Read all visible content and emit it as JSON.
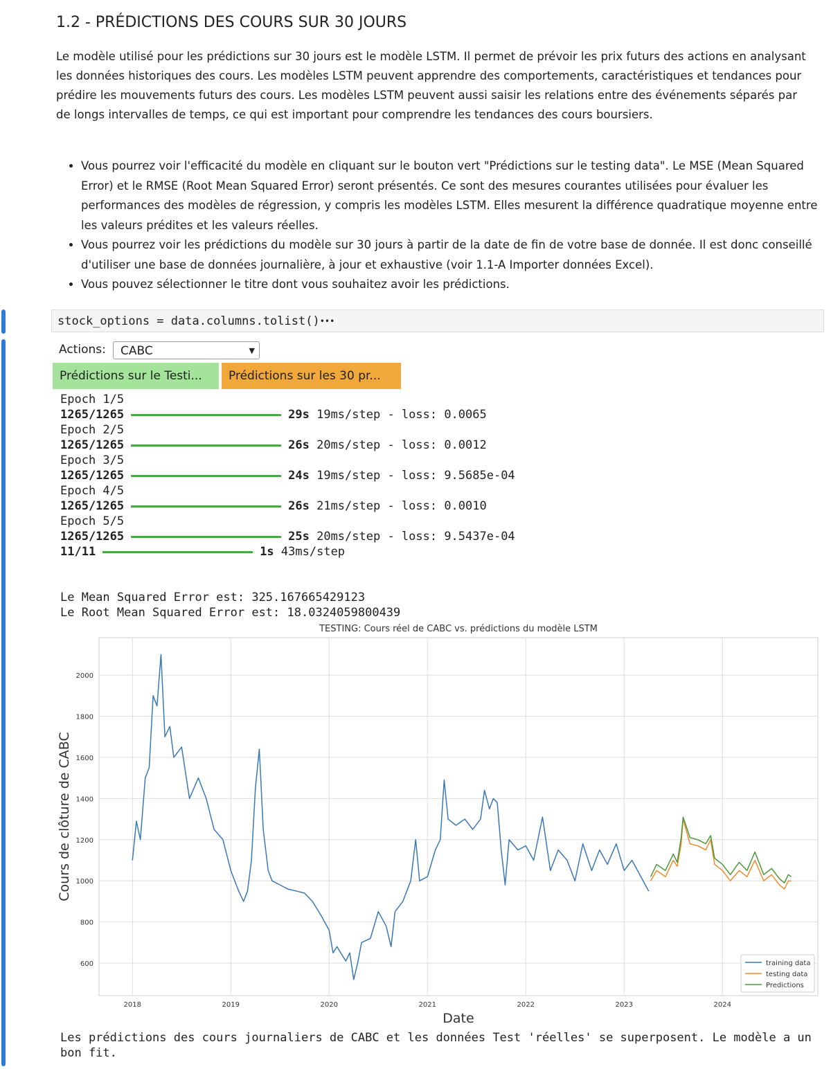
{
  "header": {
    "title": "1.2 - PRÉDICTIONS DES COURS SUR 30 JOURS"
  },
  "intro": {
    "paragraph": "Le modèle utilisé pour les prédictions sur 30 jours est le modèle LSTM. Il permet de prévoir les prix futurs des actions en analysant les données historiques des cours. Les modèles LSTM peuvent apprendre des comportements, caractéristiques et tendances pour prédire les mouvements futurs des cours. Les modèles LSTM peuvent aussi saisir les relations entre des événements séparés par de longs intervalles de temps, ce qui est important pour comprendre les tendances des cours boursiers.",
    "bullets": [
      "Vous pourrez voir l'efficacité du modèle en cliquant sur le bouton vert \"Prédictions sur le testing data\". Le MSE (Mean Squared Error) et le RMSE (Root Mean Squared Error) seront présentés. Ce sont des mesures courantes utilisées pour évaluer les performances des modèles de régression, y compris les modèles LSTM. Elles mesurent la différence quadratique moyenne entre les valeurs prédites et les valeurs réelles.",
      "Vous pourrez voir les prédictions du modèle sur 30 jours à partir de la date de fin de votre base de donnée. Il est donc conseillé d'utiliser une base de données journalière, à jour et exhaustive (voir 1.1-A Importer données Excel).",
      "Vous pouvez sélectionner le titre dont vous souhaitez avoir les prédictions."
    ]
  },
  "cell": {
    "code": "stock_options = data.columns.tolist()",
    "more": "•••"
  },
  "widgets": {
    "label": "Actions:",
    "selected": "CABC",
    "buttons": [
      "Prédictions sur le Testi...",
      "Prédictions sur les 30 pr..."
    ]
  },
  "output": {
    "training_log": [
      {
        "epoch": "Epoch 1/5",
        "steps": "1265/1265",
        "time": "29s",
        "rest": "19ms/step - loss: 0.0065"
      },
      {
        "epoch": "Epoch 2/5",
        "steps": "1265/1265",
        "time": "26s",
        "rest": "20ms/step - loss: 0.0012"
      },
      {
        "epoch": "Epoch 3/5",
        "steps": "1265/1265",
        "time": "24s",
        "rest": "19ms/step - loss: 9.5685e-04"
      },
      {
        "epoch": "Epoch 4/5",
        "steps": "1265/1265",
        "time": "26s",
        "rest": "21ms/step - loss: 0.0010"
      },
      {
        "epoch": "Epoch 5/5",
        "steps": "1265/1265",
        "time": "25s",
        "rest": "20ms/step - loss: 9.5437e-04"
      }
    ],
    "eval": {
      "steps": "11/11",
      "time": "1s",
      "rest": "43ms/step"
    },
    "mse": "Le Mean Squared Error est: 325.167665429123",
    "rmse": "Le Root Mean Squared Error est: 18.0324059800439",
    "conclusion": "Les prédictions des cours journaliers de CABC et les données Test 'réelles' se superposent. Le modèle a un bon fit."
  },
  "chart_data": {
    "type": "line",
    "title": "TESTING: Cours réel de CABC vs. prédictions du modèle LSTM",
    "x_label": "Date",
    "y_label": "Cours de clôture de CABC",
    "xlim": [
      2017.66,
      2024.97
    ],
    "xticks": [
      2018,
      2019,
      2020,
      2021,
      2022,
      2023,
      2024
    ],
    "ylim": [
      442,
      2182
    ],
    "yticks": [
      600,
      800,
      1000,
      1200,
      1400,
      1600,
      1800,
      2000
    ],
    "grid": true,
    "legend": "lower right",
    "series": [
      {
        "name": "training data",
        "color": "#3a78b5",
        "x": [
          2018.0,
          2018.04,
          2018.08,
          2018.13,
          2018.17,
          2018.21,
          2018.25,
          2018.29,
          2018.33,
          2018.38,
          2018.42,
          2018.5,
          2018.58,
          2018.67,
          2018.75,
          2018.83,
          2018.92,
          2019.0,
          2019.04,
          2019.08,
          2019.13,
          2019.17,
          2019.21,
          2019.25,
          2019.29,
          2019.33,
          2019.38,
          2019.42,
          2019.5,
          2019.58,
          2019.67,
          2019.75,
          2019.83,
          2019.92,
          2020.0,
          2020.04,
          2020.08,
          2020.13,
          2020.17,
          2020.21,
          2020.25,
          2020.29,
          2020.33,
          2020.42,
          2020.5,
          2020.58,
          2020.63,
          2020.67,
          2020.75,
          2020.83,
          2020.88,
          2020.92,
          2021.0,
          2021.08,
          2021.13,
          2021.17,
          2021.21,
          2021.29,
          2021.38,
          2021.46,
          2021.54,
          2021.58,
          2021.63,
          2021.67,
          2021.71,
          2021.75,
          2021.79,
          2021.83,
          2021.92,
          2022.0,
          2022.08,
          2022.17,
          2022.25,
          2022.33,
          2022.42,
          2022.5,
          2022.58,
          2022.67,
          2022.75,
          2022.83,
          2022.92,
          2023.0,
          2023.08,
          2023.17,
          2023.25
        ],
        "values": [
          1100,
          1290,
          1200,
          1500,
          1550,
          1900,
          1850,
          2100,
          1700,
          1750,
          1600,
          1650,
          1400,
          1500,
          1400,
          1250,
          1200,
          1050,
          1000,
          950,
          900,
          950,
          1100,
          1450,
          1640,
          1250,
          1050,
          1000,
          980,
          960,
          950,
          940,
          900,
          830,
          760,
          650,
          680,
          640,
          610,
          650,
          520,
          600,
          700,
          720,
          850,
          780,
          680,
          850,
          900,
          1000,
          1200,
          1000,
          1020,
          1150,
          1200,
          1490,
          1300,
          1270,
          1300,
          1250,
          1300,
          1440,
          1350,
          1400,
          1380,
          1150,
          980,
          1200,
          1150,
          1170,
          1100,
          1310,
          1050,
          1150,
          1100,
          1000,
          1180,
          1050,
          1150,
          1080,
          1180,
          1050,
          1100,
          1020,
          950
        ]
      },
      {
        "name": "testing data",
        "color": "#f08a2c",
        "x": [
          2023.27,
          2023.33,
          2023.42,
          2023.5,
          2023.54,
          2023.58,
          2023.6,
          2023.67,
          2023.75,
          2023.83,
          2023.88,
          2023.92,
          2024.0,
          2024.08,
          2024.17,
          2024.25,
          2024.33,
          2024.42,
          2024.5,
          2024.58,
          2024.63,
          2024.67,
          2024.7
        ],
        "values": [
          1000,
          1050,
          1020,
          1100,
          1070,
          1180,
          1300,
          1180,
          1170,
          1150,
          1200,
          1080,
          1050,
          1000,
          1050,
          1020,
          1100,
          1000,
          1030,
          980,
          960,
          1000,
          1000
        ]
      },
      {
        "name": "Predictions",
        "color": "#4a9a3a",
        "x": [
          2023.27,
          2023.33,
          2023.42,
          2023.5,
          2023.54,
          2023.58,
          2023.6,
          2023.67,
          2023.75,
          2023.83,
          2023.88,
          2023.92,
          2024.0,
          2024.08,
          2024.17,
          2024.25,
          2024.33,
          2024.42,
          2024.5,
          2024.58,
          2024.63,
          2024.67,
          2024.7
        ],
        "values": [
          1020,
          1080,
          1050,
          1130,
          1090,
          1210,
          1310,
          1210,
          1200,
          1180,
          1220,
          1110,
          1080,
          1030,
          1090,
          1050,
          1140,
          1030,
          1060,
          1010,
          990,
          1030,
          1020
        ]
      }
    ]
  }
}
